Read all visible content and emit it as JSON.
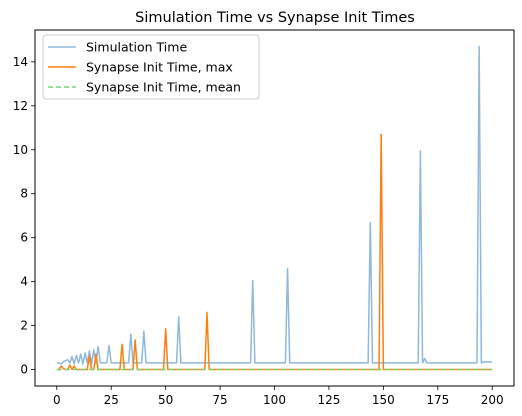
{
  "chart_data": {
    "type": "line",
    "title": "Simulation Time vs Synapse Init Times",
    "xlabel": "",
    "ylabel": "",
    "xlim": [
      -10,
      210
    ],
    "ylim": [
      -0.75,
      15.45
    ],
    "xticks": [
      0,
      25,
      50,
      75,
      100,
      125,
      150,
      175,
      200
    ],
    "yticks": [
      0,
      2,
      4,
      6,
      8,
      10,
      12,
      14
    ],
    "grid": false,
    "legend_position": "upper-left",
    "series": [
      {
        "name": "Simulation Time",
        "color": "#8fb8dc",
        "style": "solid",
        "x": [
          0,
          1,
          2,
          3,
          4,
          5,
          6,
          7,
          8,
          9,
          10,
          11,
          12,
          13,
          14,
          15,
          16,
          17,
          18,
          19,
          20,
          21,
          22,
          23,
          24,
          25,
          26,
          27,
          28,
          29,
          30,
          31,
          32,
          33,
          34,
          35,
          36,
          37,
          38,
          39,
          40,
          41,
          42,
          45,
          50,
          55,
          56,
          57,
          58,
          60,
          65,
          70,
          75,
          80,
          85,
          89,
          90,
          91,
          92,
          95,
          100,
          104,
          105,
          106,
          107,
          110,
          115,
          120,
          125,
          130,
          135,
          140,
          142,
          143,
          144,
          145,
          146,
          150,
          155,
          160,
          165,
          166,
          167,
          168,
          169,
          170,
          175,
          180,
          185,
          190,
          192,
          193,
          194,
          195,
          196,
          200
        ],
        "y": [
          0.3,
          0.3,
          0.25,
          0.35,
          0.4,
          0.45,
          0.3,
          0.6,
          0.25,
          0.65,
          0.3,
          0.7,
          0.25,
          0.75,
          0.3,
          0.85,
          0.25,
          0.9,
          0.3,
          1.05,
          0.3,
          0.3,
          0.3,
          0.3,
          1.1,
          0.3,
          0.3,
          0.3,
          0.3,
          0.3,
          0.3,
          0.3,
          0.3,
          0.3,
          1.6,
          0.3,
          0.3,
          0.3,
          0.3,
          0.3,
          1.75,
          0.3,
          0.3,
          0.3,
          0.3,
          0.3,
          2.4,
          0.3,
          0.3,
          0.3,
          0.3,
          0.3,
          0.3,
          0.3,
          0.3,
          0.3,
          4.05,
          0.3,
          0.3,
          0.3,
          0.3,
          0.3,
          0.3,
          4.6,
          0.3,
          0.3,
          0.3,
          0.3,
          0.3,
          0.3,
          0.3,
          0.3,
          0.3,
          0.3,
          6.7,
          0.3,
          0.3,
          0.3,
          0.3,
          0.3,
          0.3,
          0.3,
          9.95,
          0.3,
          0.5,
          0.3,
          0.3,
          0.3,
          0.3,
          0.3,
          0.3,
          0.3,
          14.7,
          0.3,
          0.35,
          0.35
        ]
      },
      {
        "name": "Synapse Init Time, max",
        "color": "#ff7f0e",
        "style": "solid",
        "x": [
          0,
          1,
          2,
          3,
          4,
          5,
          6,
          7,
          8,
          9,
          14,
          15,
          16,
          17,
          18,
          19,
          29,
          30,
          31,
          35,
          36,
          37,
          49,
          50,
          51,
          63,
          64,
          65,
          68,
          69,
          70,
          147,
          148,
          149,
          150,
          151,
          200
        ],
        "y": [
          0,
          0,
          0.15,
          0.05,
          0,
          0,
          0.2,
          0,
          0.15,
          0,
          0,
          0.6,
          0,
          0,
          0.7,
          0,
          0,
          1.15,
          0,
          0,
          1.35,
          0,
          0,
          1.85,
          0,
          0,
          0,
          0,
          0,
          2.6,
          0,
          0,
          0,
          10.7,
          0,
          0,
          0
        ]
      },
      {
        "name": "Synapse Init Time, mean",
        "color": "#7bd37b",
        "style": "dashed",
        "x": [
          0,
          200
        ],
        "y": [
          0,
          0
        ]
      }
    ]
  }
}
